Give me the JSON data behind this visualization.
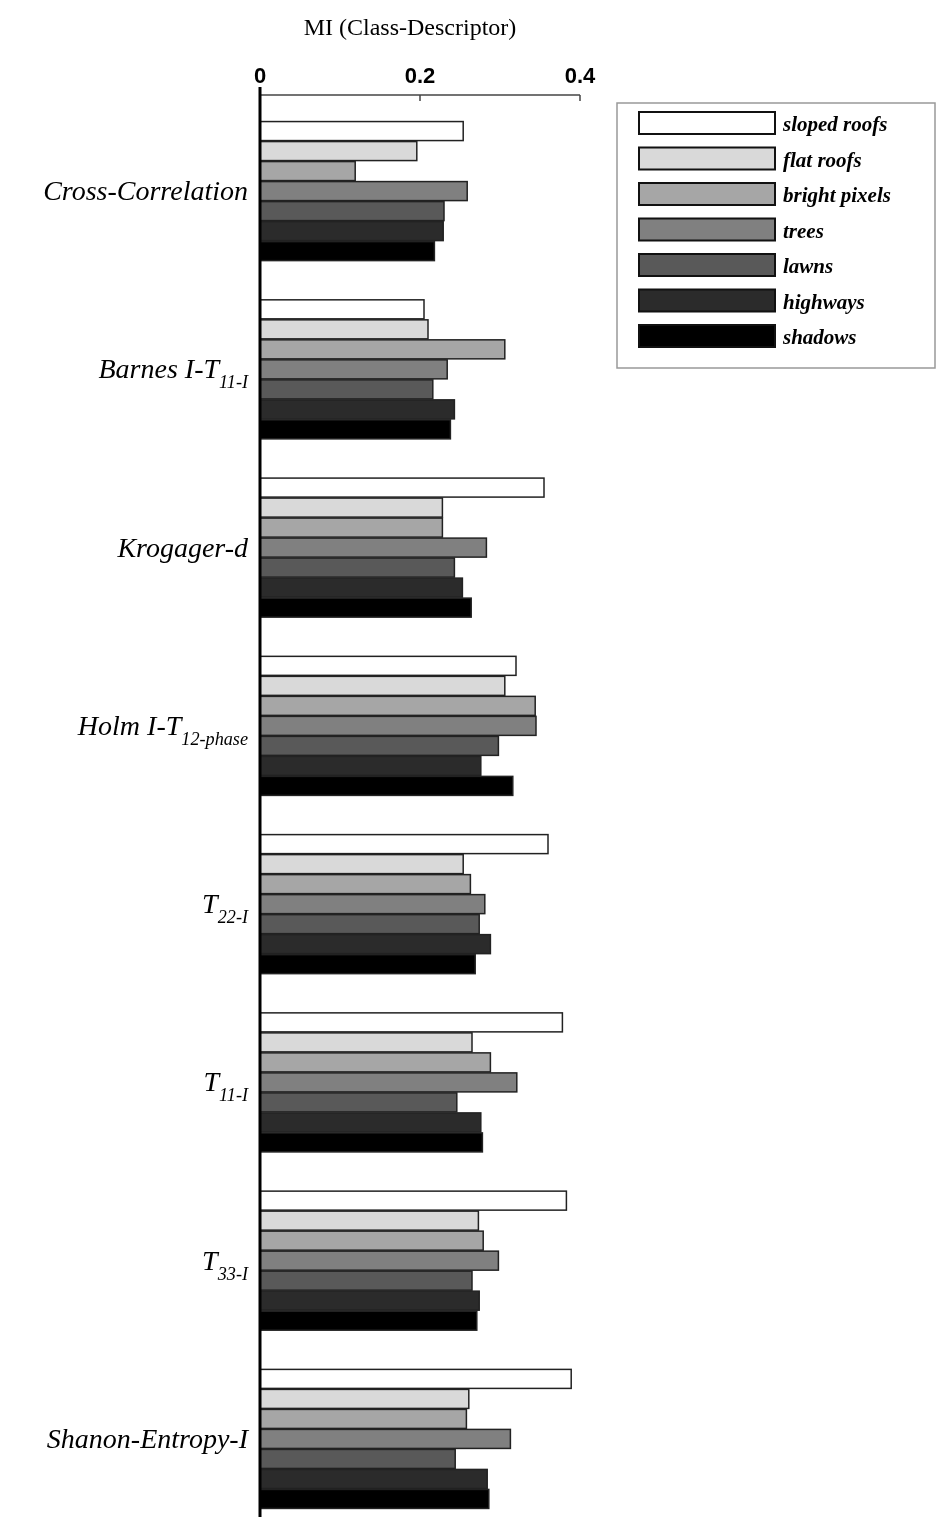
{
  "chart_data": {
    "type": "bar",
    "orientation": "horizontal",
    "xlabel": "MI (Class-Descriptor)",
    "categories": [
      "Cross-Correlation",
      "Barnes I-T$_{11-I}$",
      "Krogager-d",
      "Holm I-T$_{12-phase}$",
      "T$_{22-I}$",
      "T$_{11-I}$",
      "T$_{33-I}$",
      "Shanon-Entropy-I"
    ],
    "series": [
      {
        "name": "sloped roofs",
        "color": "#ffffff",
        "values": [
          0.254,
          0.205,
          0.355,
          0.32,
          0.36,
          0.378,
          0.383,
          0.389
        ]
      },
      {
        "name": "flat roofs",
        "color": "#d9d9d9",
        "values": [
          0.196,
          0.21,
          0.228,
          0.306,
          0.254,
          0.265,
          0.273,
          0.261
        ]
      },
      {
        "name": "bright pixels",
        "color": "#a6a6a6",
        "values": [
          0.119,
          0.306,
          0.228,
          0.344,
          0.263,
          0.288,
          0.279,
          0.258
        ]
      },
      {
        "name": "trees",
        "color": "#808080",
        "values": [
          0.259,
          0.234,
          0.283,
          0.345,
          0.281,
          0.321,
          0.298,
          0.313
        ]
      },
      {
        "name": "lawns",
        "color": "#595959",
        "values": [
          0.23,
          0.216,
          0.243,
          0.298,
          0.274,
          0.246,
          0.265,
          0.244
        ]
      },
      {
        "name": "highways",
        "color": "#2b2b2b",
        "values": [
          0.229,
          0.243,
          0.253,
          0.276,
          0.288,
          0.276,
          0.274,
          0.284
        ]
      },
      {
        "name": "shadows",
        "color": "#000000",
        "values": [
          0.218,
          0.238,
          0.264,
          0.316,
          0.269,
          0.278,
          0.271,
          0.286
        ]
      }
    ],
    "xlim": [
      0,
      0.4
    ],
    "xticks": [
      0,
      0.2,
      0.4
    ],
    "grid": false,
    "legend": "top right"
  }
}
